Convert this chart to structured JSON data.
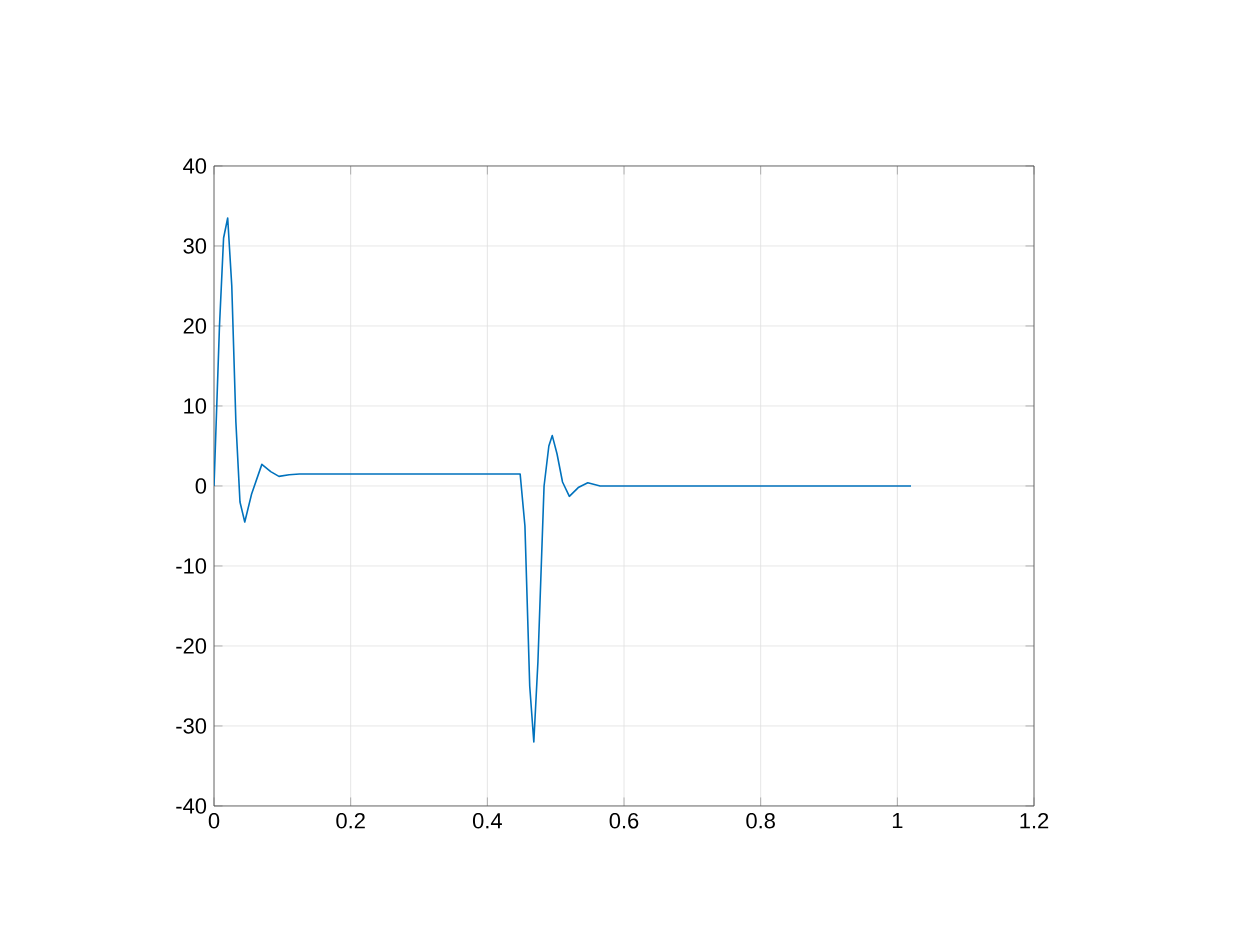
{
  "chart_data": {
    "type": "line",
    "color": "#0072bd",
    "grid": true,
    "x": [
      0,
      0.008,
      0.014,
      0.02,
      0.026,
      0.032,
      0.038,
      0.045,
      0.055,
      0.07,
      0.083,
      0.095,
      0.11,
      0.125,
      0.2,
      0.3,
      0.4,
      0.448,
      0.455,
      0.462,
      0.468,
      0.474,
      0.483,
      0.49,
      0.495,
      0.502,
      0.51,
      0.52,
      0.533,
      0.547,
      0.565,
      0.585,
      0.7,
      0.8,
      0.9,
      1.02
    ],
    "values": [
      0,
      20,
      31,
      33.5,
      25,
      8,
      -2,
      -4.5,
      -1,
      2.7,
      1.8,
      1.2,
      1.4,
      1.5,
      1.5,
      1.5,
      1.5,
      1.5,
      -5,
      -25,
      -32,
      -22,
      0,
      5,
      6.3,
      4,
      0.5,
      -1.3,
      -0.2,
      0.4,
      0,
      0,
      0,
      0,
      0,
      0
    ],
    "xlim": [
      0,
      1.2
    ],
    "xticks": [
      0,
      0.2,
      0.4,
      0.6,
      0.8,
      1,
      1.2
    ],
    "ylim": [
      -40,
      40
    ],
    "yticks": [
      -40,
      -30,
      -20,
      -10,
      0,
      10,
      20,
      30,
      40
    ]
  }
}
